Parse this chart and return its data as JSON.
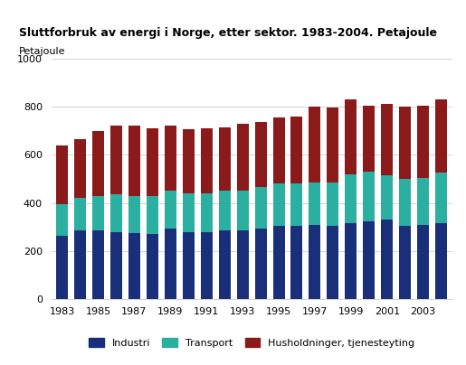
{
  "title": "Sluttforbruk av energi i Norge, etter sektor. 1983-2004. Petajoule",
  "ylabel": "Petajoule",
  "years": [
    1983,
    1984,
    1985,
    1986,
    1987,
    1988,
    1989,
    1990,
    1991,
    1992,
    1993,
    1994,
    1995,
    1996,
    1997,
    1998,
    1999,
    2000,
    2001,
    2002,
    2003,
    2004
  ],
  "industri": [
    265,
    285,
    285,
    280,
    275,
    270,
    295,
    280,
    280,
    285,
    285,
    295,
    305,
    305,
    310,
    305,
    315,
    325,
    330,
    305,
    310,
    315
  ],
  "transport": [
    130,
    135,
    145,
    155,
    155,
    160,
    155,
    160,
    160,
    165,
    165,
    170,
    175,
    175,
    175,
    180,
    205,
    205,
    185,
    195,
    195,
    210
  ],
  "husholdninger": [
    245,
    245,
    270,
    285,
    290,
    280,
    270,
    265,
    270,
    265,
    280,
    270,
    275,
    280,
    315,
    310,
    310,
    275,
    295,
    300,
    300,
    305
  ],
  "color_industri": "#1a2f7a",
  "color_transport": "#2aafa0",
  "color_husholdninger": "#8b1a1a",
  "ylim": [
    0,
    1000
  ],
  "yticks": [
    0,
    200,
    400,
    600,
    800,
    1000
  ],
  "legend_labels": [
    "Industri",
    "Transport",
    "Husholdninger, tjenesteyting"
  ],
  "background_color": "#ffffff",
  "grid_color": "#cccccc"
}
